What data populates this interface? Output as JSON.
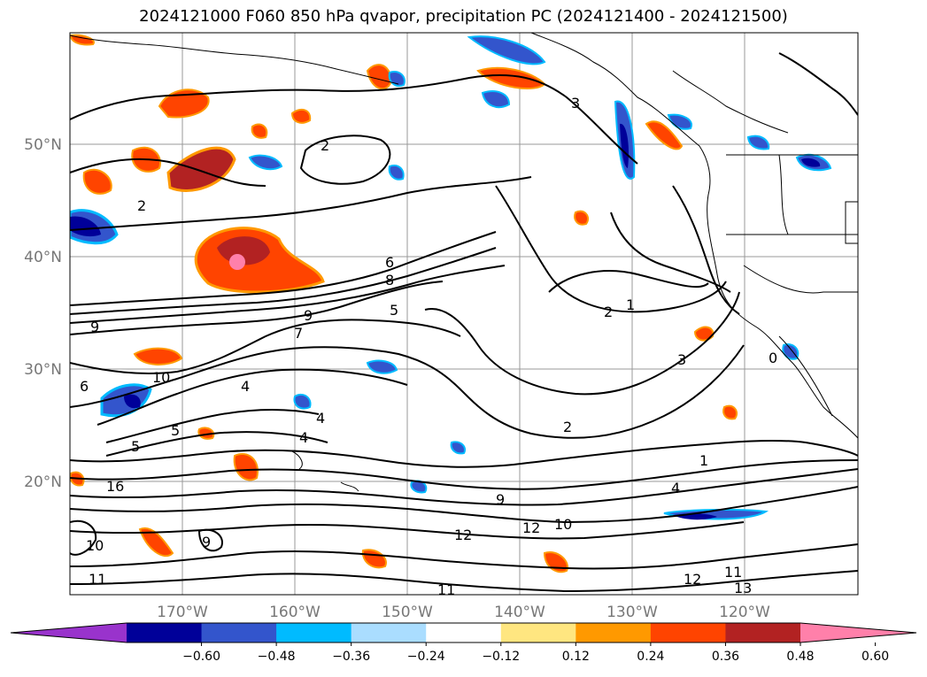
{
  "title": "2024121000 F060 850 hPa qvapor, precipitation PC (2024121400 - 2024121500)",
  "map": {
    "latitudes": [
      "50°N",
      "40°N",
      "30°N",
      "20°N"
    ],
    "longitudes": [
      "170°W",
      "160°W",
      "150°W",
      "140°W",
      "130°W",
      "120°W"
    ],
    "contour_labels": [
      "2",
      "2",
      "3",
      "6",
      "8",
      "9",
      "9",
      "7",
      "5",
      "2",
      "1",
      "3",
      "0",
      "10",
      "4",
      "4",
      "4",
      "6",
      "5",
      "5",
      "2",
      "1",
      "4",
      "16",
      "9",
      "10",
      "12",
      "12",
      "11",
      "13",
      "11",
      "9",
      "10",
      "12",
      "11"
    ]
  },
  "colorbar": {
    "tick_labels": [
      "−0.60",
      "−0.48",
      "−0.36",
      "−0.24",
      "−0.12",
      "0.12",
      "0.24",
      "0.36",
      "0.48",
      "0.60"
    ],
    "colors": [
      "#9933cc",
      "#000099",
      "#3355cc",
      "#00bbff",
      "#aaddff",
      "#ffffff",
      "#ffe680",
      "#ff9900",
      "#ff4400",
      "#b22222",
      "#ff80aa"
    ]
  }
}
